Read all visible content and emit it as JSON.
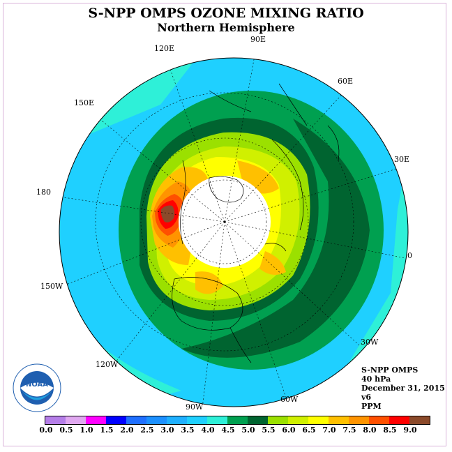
{
  "header": {
    "title": "S-NPP OMPS OZONE MIXING RATIO",
    "subtitle": "Northern Hemisphere"
  },
  "map": {
    "projection": "north-polar-stereographic",
    "hemisphere": "Northern",
    "longitude_labels": [
      {
        "id": "lon-90e",
        "text": "90E"
      },
      {
        "id": "lon-60e",
        "text": "60E"
      },
      {
        "id": "lon-30e",
        "text": "30E"
      },
      {
        "id": "lon-0",
        "text": "0"
      },
      {
        "id": "lon-30w",
        "text": "30W"
      },
      {
        "id": "lon-60w",
        "text": "60W"
      },
      {
        "id": "lon-90w",
        "text": "90W"
      },
      {
        "id": "lon-120w",
        "text": "120W"
      },
      {
        "id": "lon-150w",
        "text": "150W"
      },
      {
        "id": "lon-180",
        "text": "180"
      },
      {
        "id": "lon-150e",
        "text": "150E"
      },
      {
        "id": "lon-120e",
        "text": "120E"
      }
    ],
    "polar_night_no_data": true,
    "max_region": "Bering Strait / northeast Siberia, above 8.5 ppm"
  },
  "info": {
    "instrument": "S-NPP OMPS",
    "level": "40 hPa",
    "date": "December 31, 2015",
    "version": "v6",
    "units": "PPM"
  },
  "colorbar": {
    "ticks": [
      "0.0",
      "0.5",
      "1.0",
      "1.5",
      "2.0",
      "2.5",
      "3.0",
      "3.5",
      "4.0",
      "4.5",
      "5.0",
      "5.5",
      "6.0",
      "6.5",
      "7.0",
      "7.5",
      "8.0",
      "8.5",
      "9.0"
    ],
    "colors": [
      "#b57ee8",
      "#e0a8f0",
      "#ff00ff",
      "#0000ff",
      "#1f6fff",
      "#1c90ff",
      "#1fb0ff",
      "#1fd0ff",
      "#2ef0d8",
      "#00a050",
      "#006430",
      "#9be000",
      "#d0f000",
      "#ffff00",
      "#ffc000",
      "#ff9400",
      "#ff5000",
      "#ff0000",
      "#8b4a2a"
    ]
  },
  "logo": {
    "text": "NOAA"
  }
}
